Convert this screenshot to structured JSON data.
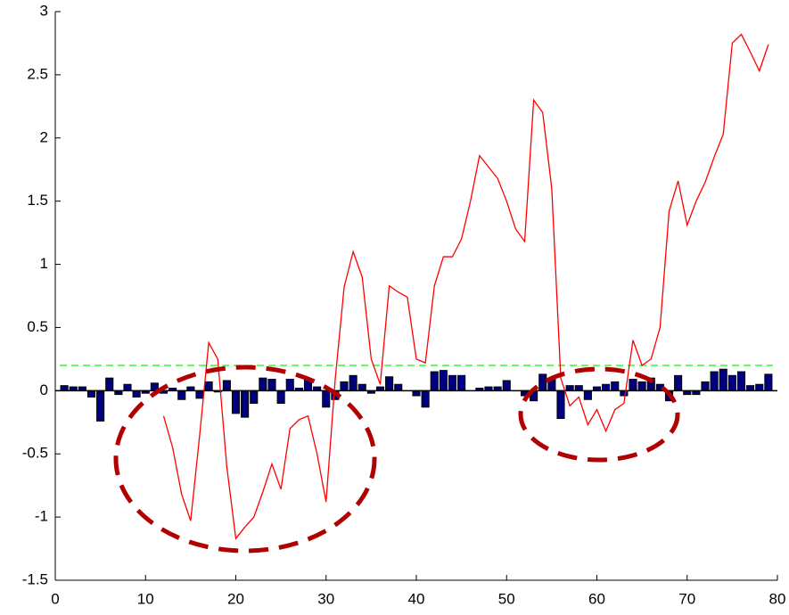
{
  "chart_data": {
    "type": "combo",
    "x": [
      1,
      2,
      3,
      4,
      5,
      6,
      7,
      8,
      9,
      10,
      11,
      12,
      13,
      14,
      15,
      16,
      17,
      18,
      19,
      20,
      21,
      22,
      23,
      24,
      25,
      26,
      27,
      28,
      29,
      30,
      31,
      32,
      33,
      34,
      35,
      36,
      37,
      38,
      39,
      40,
      41,
      42,
      43,
      44,
      45,
      46,
      47,
      48,
      49,
      50,
      51,
      52,
      53,
      54,
      55,
      56,
      57,
      58,
      59,
      60,
      61,
      62,
      63,
      64,
      65,
      66,
      67,
      68,
      69,
      70,
      71,
      72,
      73,
      74,
      75,
      76,
      77,
      78,
      79
    ],
    "series": [
      {
        "type": "bar",
        "color": "#00007f",
        "values": [
          0.04,
          0.03,
          0.03,
          -0.05,
          -0.24,
          0.1,
          -0.03,
          0.05,
          -0.05,
          -0.02,
          0.06,
          -0.02,
          0.02,
          -0.07,
          0.03,
          -0.06,
          0.07,
          -0.01,
          0.08,
          -0.18,
          -0.21,
          -0.1,
          0.1,
          0.09,
          -0.1,
          0.09,
          0.02,
          0.09,
          0.03,
          -0.13,
          -0.07,
          0.07,
          0.12,
          0.05,
          -0.02,
          0.03,
          0.11,
          0.05,
          0.0,
          -0.04,
          -0.13,
          0.15,
          0.16,
          0.12,
          0.12,
          0.0,
          0.02,
          0.03,
          0.03,
          0.08,
          0.0,
          -0.04,
          -0.08,
          0.13,
          0.09,
          -0.22,
          0.04,
          0.04,
          -0.07,
          0.03,
          0.05,
          0.07,
          -0.04,
          0.09,
          0.07,
          0.1,
          0.05,
          -0.08,
          0.12,
          -0.03,
          -0.03,
          0.07,
          0.15,
          0.17,
          0.12,
          0.15,
          0.04,
          0.05,
          0.13
        ]
      },
      {
        "type": "line",
        "color": "#ff0000",
        "values": [
          null,
          null,
          null,
          null,
          null,
          null,
          null,
          null,
          null,
          null,
          null,
          -0.2,
          -0.45,
          -0.82,
          -1.03,
          -0.35,
          0.38,
          0.25,
          -0.6,
          -1.17,
          -1.08,
          -1.0,
          -0.8,
          -0.58,
          -0.78,
          -0.3,
          -0.23,
          -0.2,
          -0.5,
          -0.88,
          0.08,
          0.82,
          1.1,
          0.9,
          0.25,
          0.05,
          0.83,
          0.78,
          0.74,
          0.25,
          0.22,
          0.83,
          1.06,
          1.06,
          1.2,
          1.5,
          1.86,
          1.77,
          1.68,
          1.5,
          1.28,
          1.18,
          2.3,
          2.2,
          1.6,
          0.1,
          -0.12,
          -0.05,
          -0.27,
          -0.15,
          -0.32,
          -0.15,
          -0.1,
          0.4,
          0.2,
          0.25,
          0.5,
          1.42,
          1.66,
          1.31,
          1.5,
          1.65,
          1.85,
          2.03,
          2.75,
          2.82,
          2.68,
          2.53,
          2.74
        ]
      }
    ],
    "reference_line": {
      "value": 0.2,
      "color": "#00ff00"
    },
    "xlim": [
      0,
      80
    ],
    "xticks": [
      0,
      10,
      20,
      30,
      40,
      50,
      60,
      70,
      80
    ],
    "ylim": [
      -1.5,
      3
    ],
    "yticks": [
      -1.5,
      -1,
      -0.5,
      0,
      0.5,
      1,
      1.5,
      2,
      2.5,
      3
    ]
  }
}
